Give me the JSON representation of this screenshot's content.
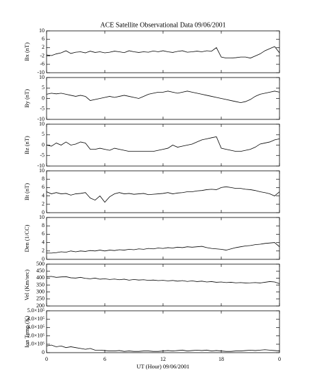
{
  "chart_data": [
    {
      "type": "line",
      "title": "ACE Satellite Observational Data  09/06/2001",
      "ylabel": "Bx (nT)",
      "color": "#000000",
      "x": [
        0,
        0.5,
        1,
        1.5,
        2,
        2.5,
        3,
        3.5,
        4,
        4.5,
        5,
        5.5,
        6,
        6.5,
        7,
        7.5,
        8,
        8.5,
        9,
        9.5,
        10,
        10.5,
        11,
        11.5,
        12,
        12.5,
        13,
        13.5,
        14,
        14.5,
        15,
        15.5,
        16,
        16.5,
        17,
        17.5,
        18,
        18.5,
        19,
        19.5,
        20,
        20.5,
        21,
        21.5,
        22,
        22.5,
        23,
        23.5,
        24
      ],
      "values": [
        -1.5,
        -1.8,
        -1,
        -0.5,
        0.5,
        -0.8,
        -0.2,
        0,
        -0.5,
        0.3,
        -0.3,
        0,
        -0.5,
        -0.2,
        0.3,
        0,
        -0.4,
        0.5,
        0,
        -0.3,
        0,
        -0.2,
        0.4,
        0,
        0.5,
        0,
        -0.3,
        0.2,
        0.5,
        -0.2,
        0,
        0.3,
        0,
        0.5,
        0.3,
        2,
        -2.5,
        -3,
        -3,
        -2.8,
        -2.5,
        -2.5,
        -3,
        -2,
        -1,
        0.5,
        1.5,
        2.5,
        -0.5
      ],
      "ylim": [
        -10,
        10
      ],
      "yticks": [
        -10,
        -6,
        -2,
        2,
        6,
        10
      ]
    },
    {
      "type": "line",
      "ylabel": "By (nT)",
      "color": "#000000",
      "x": [
        0,
        0.5,
        1,
        1.5,
        2,
        2.5,
        3,
        3.5,
        4,
        4.5,
        5,
        5.5,
        6,
        6.5,
        7,
        7.5,
        8,
        8.5,
        9,
        9.5,
        10,
        10.5,
        11,
        11.5,
        12,
        12.5,
        13,
        13.5,
        14,
        14.5,
        15,
        15.5,
        16,
        16.5,
        17,
        17.5,
        18,
        18.5,
        19,
        19.5,
        20,
        20.5,
        21,
        21.5,
        22,
        22.5,
        23,
        23.5,
        24
      ],
      "values": [
        2,
        2.5,
        2.2,
        2.5,
        2,
        1.5,
        1,
        1.5,
        1,
        -1,
        -0.5,
        0,
        0.5,
        1,
        0.5,
        1,
        1.5,
        1,
        0.5,
        0,
        1,
        2,
        2.5,
        3,
        3,
        3.5,
        3,
        2.5,
        3,
        3.5,
        3,
        2.5,
        2,
        1.5,
        1,
        0.5,
        0,
        -0.5,
        -1,
        -1.5,
        -2,
        -1.5,
        -0.5,
        1,
        2,
        2.5,
        3,
        3.5,
        3
      ],
      "ylim": [
        -10,
        10
      ],
      "yticks": [
        -10,
        -5,
        0,
        5,
        10
      ]
    },
    {
      "type": "line",
      "ylabel": "Bz (nT)",
      "color": "#000000",
      "x": [
        0,
        0.5,
        1,
        1.5,
        2,
        2.5,
        3,
        3.5,
        4,
        4.5,
        5,
        5.5,
        6,
        6.5,
        7,
        7.5,
        8,
        8.5,
        9,
        9.5,
        10,
        10.5,
        11,
        11.5,
        12,
        12.5,
        13,
        13.5,
        14,
        14.5,
        15,
        15.5,
        16,
        16.5,
        17,
        17.5,
        18,
        18.5,
        19,
        19.5,
        20,
        20.5,
        21,
        21.5,
        22,
        22.5,
        23,
        23.5,
        24
      ],
      "values": [
        0,
        -0.5,
        1,
        0,
        1.5,
        0,
        0.5,
        1.5,
        1,
        -2,
        -2,
        -1.5,
        -2,
        -2.5,
        -1.5,
        -2,
        -2.5,
        -3,
        -3,
        -3,
        -3,
        -3,
        -3,
        -2.5,
        -2,
        -1.5,
        0,
        -1,
        -0.5,
        0,
        0.5,
        1.5,
        2.5,
        3,
        3.5,
        4,
        -1.5,
        -2,
        -2.5,
        -3,
        -3,
        -2.5,
        -2,
        -1,
        0.5,
        1,
        1.5,
        2.5,
        3
      ],
      "ylim": [
        -10,
        10
      ],
      "yticks": [
        -10,
        -5,
        0,
        5,
        10
      ]
    },
    {
      "type": "line",
      "ylabel": "Bt (nT)",
      "color": "#000000",
      "x": [
        0,
        0.5,
        1,
        1.5,
        2,
        2.5,
        3,
        3.5,
        4,
        4.5,
        5,
        5.5,
        6,
        6.5,
        7,
        7.5,
        8,
        8.5,
        9,
        9.5,
        10,
        10.5,
        11,
        11.5,
        12,
        12.5,
        13,
        13.5,
        14,
        14.5,
        15,
        15.5,
        16,
        16.5,
        17,
        17.5,
        18,
        18.5,
        19,
        19.5,
        20,
        20.5,
        21,
        21.5,
        22,
        22.5,
        23,
        23.5,
        24
      ],
      "values": [
        5,
        4.5,
        4.8,
        4.5,
        4.6,
        4.2,
        4.5,
        4.6,
        4.8,
        3.5,
        3,
        4,
        2.5,
        3.8,
        4.5,
        4.8,
        4.5,
        4.6,
        4.4,
        4.5,
        4.6,
        4.3,
        4.4,
        4.5,
        4.6,
        4.8,
        4.5,
        4.7,
        4.8,
        5,
        5,
        5.2,
        5.3,
        5.5,
        5.6,
        5.5,
        6,
        6.2,
        6,
        5.8,
        5.8,
        5.6,
        5.5,
        5.3,
        5,
        4.8,
        4.5,
        4,
        5
      ],
      "ylim": [
        0,
        10
      ],
      "yticks": [
        0,
        2,
        4,
        6,
        8,
        10
      ]
    },
    {
      "type": "line",
      "ylabel": "Den (1/CC)",
      "color": "#000000",
      "x": [
        0,
        0.5,
        1,
        1.5,
        2,
        2.5,
        3,
        3.5,
        4,
        4.5,
        5,
        5.5,
        6,
        6.5,
        7,
        7.5,
        8,
        8.5,
        9,
        9.5,
        10,
        10.5,
        11,
        11.5,
        12,
        12.5,
        13,
        13.5,
        14,
        14.5,
        15,
        15.5,
        16,
        16.5,
        17,
        17.5,
        18,
        18.5,
        19,
        19.5,
        20,
        20.5,
        21,
        21.5,
        22,
        22.5,
        23,
        23.5,
        24
      ],
      "values": [
        1.5,
        1.5,
        1.6,
        1.8,
        1.7,
        2,
        1.8,
        2,
        1.9,
        2.1,
        2,
        2.2,
        2,
        2.2,
        2.1,
        2.3,
        2.2,
        2.4,
        2.3,
        2.5,
        2.4,
        2.6,
        2.5,
        2.7,
        2.6,
        2.8,
        2.7,
        2.9,
        2.8,
        3,
        2.9,
        3,
        3.1,
        2.8,
        2.6,
        2.5,
        2.4,
        2.2,
        2.5,
        2.8,
        3,
        3.2,
        3.3,
        3.5,
        3.6,
        3.8,
        3.9,
        4,
        3
      ],
      "ylim": [
        0,
        10
      ],
      "yticks": [
        0,
        2,
        4,
        6,
        8,
        10
      ]
    },
    {
      "type": "line",
      "ylabel": "Vel (Km/sec)",
      "color": "#000000",
      "x": [
        0,
        0.5,
        1,
        1.5,
        2,
        2.5,
        3,
        3.5,
        4,
        4.5,
        5,
        5.5,
        6,
        6.5,
        7,
        7.5,
        8,
        8.5,
        9,
        9.5,
        10,
        10.5,
        11,
        11.5,
        12,
        12.5,
        13,
        13.5,
        14,
        14.5,
        15,
        15.5,
        16,
        16.5,
        17,
        17.5,
        18,
        18.5,
        19,
        19.5,
        20,
        20.5,
        21,
        21.5,
        22,
        22.5,
        23,
        23.5,
        24
      ],
      "values": [
        410,
        412,
        405,
        408,
        410,
        402,
        400,
        405,
        398,
        395,
        400,
        392,
        395,
        390,
        393,
        388,
        392,
        385,
        390,
        386,
        388,
        384,
        386,
        382,
        384,
        380,
        383,
        378,
        382,
        376,
        380,
        375,
        378,
        372,
        375,
        370,
        372,
        368,
        370,
        366,
        368,
        365,
        366,
        368,
        365,
        370,
        375,
        372,
        360
      ],
      "ylim": [
        200,
        500
      ],
      "yticks": [
        200,
        250,
        300,
        350,
        400,
        450,
        500
      ]
    },
    {
      "type": "line",
      "ylabel": "Ion Temp (K)",
      "xlabel": "UT (Hour)  09/06/2001",
      "color": "#000000",
      "x": [
        0,
        0.5,
        1,
        1.5,
        2,
        2.5,
        3,
        3.5,
        4,
        4.5,
        5,
        5.5,
        6,
        6.5,
        7,
        7.5,
        8,
        8.5,
        9,
        9.5,
        10,
        10.5,
        11,
        11.5,
        12,
        12.5,
        13,
        13.5,
        14,
        14.5,
        15,
        15.5,
        16,
        16.5,
        17,
        17.5,
        18,
        18.5,
        19,
        19.5,
        20,
        20.5,
        21,
        21.5,
        22,
        22.5,
        23,
        23.5,
        24
      ],
      "values": [
        80000,
        90000,
        70000,
        80000,
        60000,
        70000,
        60000,
        50000,
        40000,
        50000,
        30000,
        30000,
        25000,
        20000,
        20000,
        25000,
        15000,
        20000,
        15000,
        15000,
        20000,
        20000,
        15000,
        15000,
        20000,
        25000,
        20000,
        25000,
        30000,
        20000,
        25000,
        30000,
        25000,
        30000,
        20000,
        25000,
        20000,
        15000,
        15000,
        20000,
        20000,
        25000,
        30000,
        25000,
        30000,
        35000,
        30000,
        25000,
        20000
      ],
      "ylim": [
        0,
        500000
      ],
      "yticks": [
        0,
        {
          "value": 100000,
          "label": "1.0×10⁵"
        },
        {
          "value": 200000,
          "label": "2.0×10⁵"
        },
        {
          "value": 300000,
          "label": "3.0×10⁵"
        },
        {
          "value": 400000,
          "label": "4.0×10⁵"
        },
        {
          "value": 500000,
          "label": "5.0×10⁵"
        }
      ],
      "xlim": [
        0,
        24
      ],
      "xticks": [
        0,
        6,
        12,
        18,
        {
          "value": 24,
          "label": "0"
        }
      ]
    }
  ]
}
